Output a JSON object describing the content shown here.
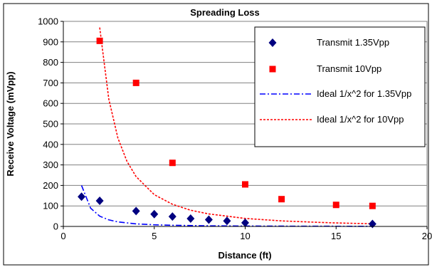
{
  "chart_data": {
    "type": "scatter",
    "title": "Spreading Loss",
    "xlabel": "Distance (ft)",
    "ylabel": "Receive Voltage (mVpp)",
    "xlim": [
      0,
      20
    ],
    "ylim": [
      0,
      1000
    ],
    "x_ticks": [
      "0",
      "5",
      "10",
      "15",
      "20"
    ],
    "y_ticks": [
      "0",
      "100",
      "200",
      "300",
      "400",
      "500",
      "600",
      "700",
      "800",
      "900",
      "1000"
    ],
    "grid": "horizontal",
    "legend_position": "top-right",
    "series": [
      {
        "name": "Transmit 1.35Vpp",
        "kind": "scatter",
        "marker": "diamond",
        "color": "#000080",
        "points": [
          [
            1,
            145
          ],
          [
            2,
            125
          ],
          [
            4,
            75
          ],
          [
            5,
            60
          ],
          [
            6,
            48
          ],
          [
            7,
            38
          ],
          [
            8,
            33
          ],
          [
            9,
            27
          ],
          [
            10,
            18
          ],
          [
            17,
            12
          ]
        ]
      },
      {
        "name": "Transmit 10Vpp",
        "kind": "scatter",
        "marker": "square",
        "color": "#ff0000",
        "points": [
          [
            2,
            905
          ],
          [
            4,
            700
          ],
          [
            6,
            310
          ],
          [
            10,
            205
          ],
          [
            12,
            133
          ],
          [
            15,
            105
          ],
          [
            17,
            100
          ]
        ]
      },
      {
        "name": "Ideal 1/x^2 for 1.35Vpp",
        "kind": "line",
        "dash": "dash-dot",
        "color": "#0000ff",
        "points": [
          [
            1,
            200
          ],
          [
            1.5,
            89
          ],
          [
            2,
            50
          ],
          [
            2.5,
            32
          ],
          [
            3,
            22
          ],
          [
            4,
            12.5
          ],
          [
            5,
            8
          ],
          [
            6,
            5.6
          ],
          [
            8,
            3.1
          ],
          [
            10,
            2
          ],
          [
            12,
            1.4
          ],
          [
            15,
            0.9
          ],
          [
            17,
            0.7
          ]
        ]
      },
      {
        "name": "Ideal 1/x^2 for 10Vpp",
        "kind": "line",
        "dash": "dotted",
        "color": "#ff0000",
        "points": [
          [
            2,
            970
          ],
          [
            2.5,
            621
          ],
          [
            3,
            431
          ],
          [
            3.5,
            317
          ],
          [
            4,
            243
          ],
          [
            5,
            155
          ],
          [
            6,
            108
          ],
          [
            7,
            79
          ],
          [
            8,
            61
          ],
          [
            10,
            39
          ],
          [
            12,
            27
          ],
          [
            14,
            20
          ],
          [
            15,
            17
          ],
          [
            17,
            13
          ]
        ]
      }
    ]
  }
}
